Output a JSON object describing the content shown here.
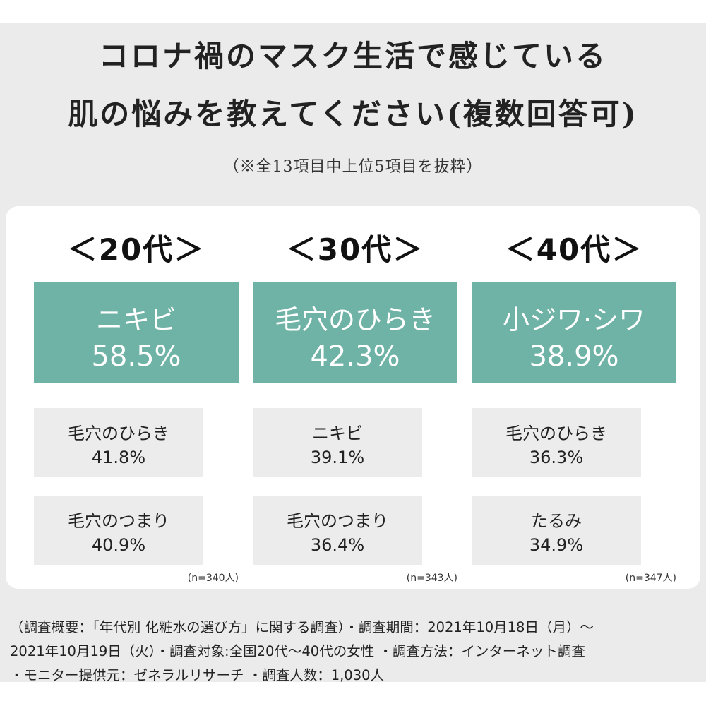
{
  "title_line1": "コロナ禍のマスク生活で感じている",
  "title_line2": "肌の悩みを教えてください(複数回答可)",
  "note": "（※全13項目中上位5項目を抜粋）",
  "chart_data": {
    "type": "table",
    "title": "コロナ禍のマスク生活で感じている肌の悩みを教えてください(複数回答可)",
    "groups": [
      {
        "age_label": "＜20代＞",
        "n_label": "(n=340人)",
        "top": {
          "label": "ニキビ",
          "value_text": "58.5%",
          "value": 58.5
        },
        "items": [
          {
            "label": "毛穴のひらき",
            "value_text": "41.8%",
            "value": 41.8
          },
          {
            "label": "毛穴のつまり",
            "value_text": "40.9%",
            "value": 40.9
          }
        ]
      },
      {
        "age_label": "＜30代＞",
        "n_label": "(n=343人)",
        "top": {
          "label": "毛穴のひらき",
          "value_text": "42.3%",
          "value": 42.3
        },
        "items": [
          {
            "label": "ニキビ",
            "value_text": "39.1%",
            "value": 39.1
          },
          {
            "label": "毛穴のつまり",
            "value_text": "36.4%",
            "value": 36.4
          }
        ]
      },
      {
        "age_label": "＜40代＞",
        "n_label": "(n=347人)",
        "top": {
          "label": "小ジワ·シワ",
          "value_text": "38.9%",
          "value": 38.9
        },
        "items": [
          {
            "label": "毛穴のひらき",
            "value_text": "36.3%",
            "value": 36.3
          },
          {
            "label": "たるみ",
            "value_text": "34.9%",
            "value": 34.9
          }
        ]
      }
    ]
  },
  "footer": {
    "line1": "（調査概要：「年代別 化粧水の選び方」に関する調査）・調査期間：2021年10月18日（月）〜",
    "line2": "2021年10月19日（火）・調査対象:全国20代〜40代の女性 ・調査方法：インターネット調査",
    "line3": "・モニター提供元：ゼネラルリサーチ ・調査人数：1,030人"
  },
  "colors": {
    "accent": "#6fb2a6",
    "background": "#ebebeb",
    "panel": "#ffffff",
    "item_box": "#ececec"
  }
}
